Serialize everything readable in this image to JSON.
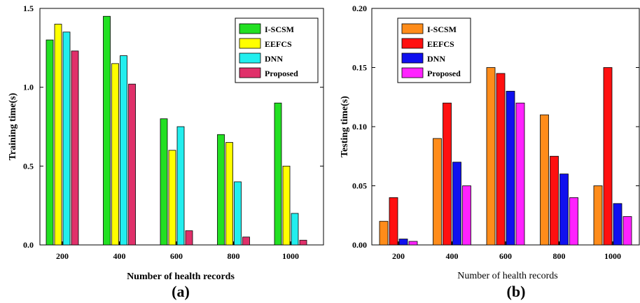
{
  "chart_data": [
    {
      "type": "bar",
      "panel_label": "(a)",
      "categories": [
        "200",
        "400",
        "600",
        "800",
        "1000"
      ],
      "xlabel": "Number of health records",
      "ylabel": "Training time(s)",
      "ylim": [
        0,
        1.5
      ],
      "yticks": [
        "0.0",
        "0.5",
        "1.0",
        "1.5"
      ],
      "legend_position": "top-right",
      "grid": false,
      "series": [
        {
          "name": "I-SCSM",
          "color": "#22e022",
          "values": [
            1.3,
            1.45,
            0.8,
            0.7,
            0.9
          ]
        },
        {
          "name": "EEFCS",
          "color": "#ffff00",
          "values": [
            1.4,
            1.15,
            0.6,
            0.65,
            0.5
          ]
        },
        {
          "name": "DNN",
          "color": "#22eeee",
          "values": [
            1.35,
            1.2,
            0.75,
            0.4,
            0.2
          ]
        },
        {
          "name": "Proposed",
          "color": "#e0306a",
          "values": [
            1.23,
            1.02,
            0.09,
            0.05,
            0.03
          ]
        }
      ]
    },
    {
      "type": "bar",
      "panel_label": "(b)",
      "categories": [
        "200",
        "400",
        "600",
        "800",
        "1000"
      ],
      "xlabel": "Number of health records",
      "ylabel": "Testing time(s)",
      "ylim": [
        0,
        0.2
      ],
      "yticks": [
        "0.00",
        "0.05",
        "0.10",
        "0.15",
        "0.20"
      ],
      "legend_position": "top-right",
      "grid": false,
      "series": [
        {
          "name": "I-SCSM",
          "color": "#ff8c1a",
          "values": [
            0.02,
            0.09,
            0.15,
            0.11,
            0.05
          ]
        },
        {
          "name": "EEFCS",
          "color": "#ff1010",
          "values": [
            0.04,
            0.12,
            0.145,
            0.075,
            0.15
          ]
        },
        {
          "name": "DNN",
          "color": "#1010ee",
          "values": [
            0.005,
            0.07,
            0.13,
            0.06,
            0.035
          ]
        },
        {
          "name": "Proposed",
          "color": "#ff22ff",
          "values": [
            0.003,
            0.05,
            0.12,
            0.04,
            0.024
          ]
        }
      ]
    }
  ]
}
